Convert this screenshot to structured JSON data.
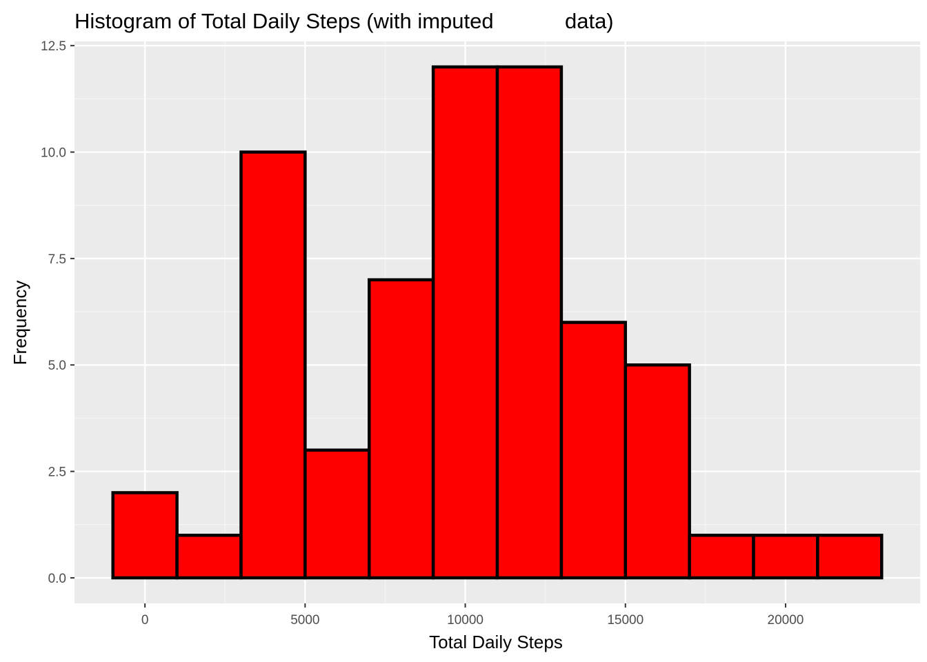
{
  "chart_data": {
    "type": "bar",
    "title": "Histogram of Total Daily Steps (with imputed            data)",
    "xlabel": "Total Daily Steps",
    "ylabel": "Frequency",
    "bin_width": 2000,
    "bins": [
      {
        "start": -1000,
        "end": 1000,
        "count": 2
      },
      {
        "start": 1000,
        "end": 3000,
        "count": 1
      },
      {
        "start": 3000,
        "end": 5000,
        "count": 10
      },
      {
        "start": 5000,
        "end": 7000,
        "count": 3
      },
      {
        "start": 7000,
        "end": 9000,
        "count": 7
      },
      {
        "start": 9000,
        "end": 11000,
        "count": 12
      },
      {
        "start": 11000,
        "end": 13000,
        "count": 12
      },
      {
        "start": 13000,
        "end": 15000,
        "count": 6
      },
      {
        "start": 15000,
        "end": 17000,
        "count": 5
      },
      {
        "start": 17000,
        "end": 19000,
        "count": 1
      },
      {
        "start": 19000,
        "end": 21000,
        "count": 1
      },
      {
        "start": 21000,
        "end": 23000,
        "count": 1
      }
    ],
    "xlim": [
      -2200,
      24200
    ],
    "ylim": [
      -0.6,
      12.6
    ],
    "x_ticks": [
      0,
      5000,
      10000,
      15000,
      20000
    ],
    "x_tick_labels": [
      "0",
      "5000",
      "10000",
      "15000",
      "20000"
    ],
    "y_ticks": [
      0,
      2.5,
      5,
      7.5,
      10,
      12.5
    ],
    "y_tick_labels": [
      "0.0",
      "2.5",
      "5.0",
      "7.5",
      "10.0",
      "12.5"
    ],
    "grid": true,
    "colors": {
      "bar_fill": "#FF0000",
      "bar_outline": "#000000",
      "panel_background": "#EBEBEB",
      "grid_major": "#FFFFFF",
      "grid_minor": "#F5F5F5",
      "tick_text": "#4D4D4D"
    }
  }
}
